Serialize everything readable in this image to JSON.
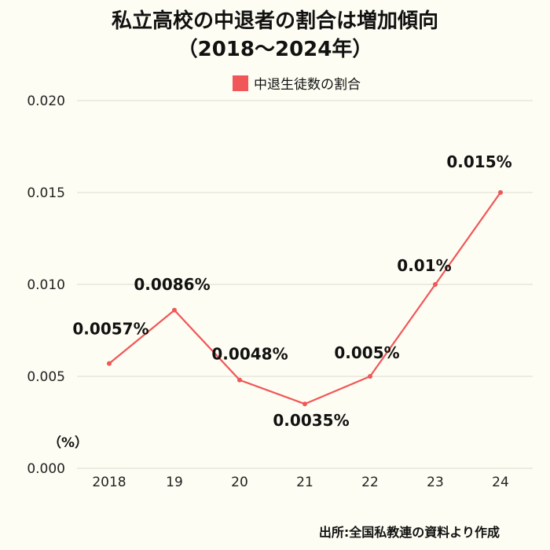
{
  "title_line1": "私立高校の中退者の割合は増加傾向",
  "title_line2": "（2018〜2024年）",
  "legend_label": "中退生徒数の割合",
  "unit_label": "（%）",
  "source": "出所:全国私教連の資料より作成",
  "colors": {
    "series": "#f15658",
    "grid": "#dcdcd0",
    "background": "#fdfdf3"
  },
  "chart_data": {
    "type": "line",
    "title": "私立高校の中退者の割合は増加傾向（2018〜2024年）",
    "xlabel": "",
    "ylabel": "（%）",
    "categories": [
      "2018",
      "19",
      "20",
      "21",
      "22",
      "23",
      "24"
    ],
    "series": [
      {
        "name": "中退生徒数の割合",
        "values": [
          0.0057,
          0.0086,
          0.0048,
          0.0035,
          0.005,
          0.01,
          0.015
        ],
        "labels": [
          "0.0057%",
          "0.0086%",
          "0.0048%",
          "0.0035%",
          "0.005%",
          "0.01%",
          "0.015%"
        ]
      }
    ],
    "ylim": [
      0,
      0.02
    ],
    "yticks": [
      "0.000",
      "0.005",
      "0.010",
      "0.015",
      "0.020"
    ],
    "grid": true,
    "legend_position": "top-center"
  }
}
